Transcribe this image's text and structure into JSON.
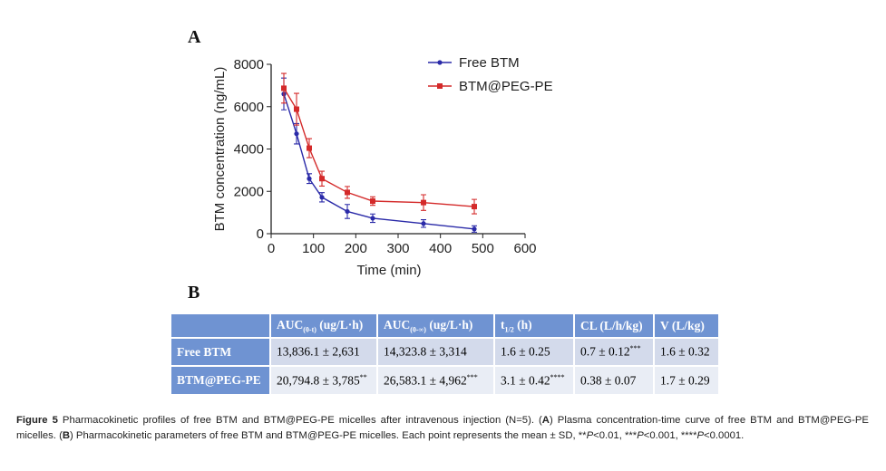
{
  "panel_a_label": "A",
  "panel_b_label": "B",
  "chart_data": {
    "type": "line",
    "xlabel": "Time (min)",
    "ylabel": "BTM concentration (ng/mL)",
    "xlim": [
      0,
      600
    ],
    "ylim": [
      0,
      8000
    ],
    "xticks": [
      0,
      100,
      200,
      300,
      400,
      500,
      600
    ],
    "yticks": [
      0,
      2000,
      4000,
      6000,
      8000
    ],
    "grid": false,
    "legend": "top-right",
    "x": [
      30,
      60,
      90,
      120,
      180,
      240,
      360,
      480
    ],
    "series": [
      {
        "name": "Free BTM",
        "color": "#2a2aa8",
        "marker": "circle",
        "values": [
          6600,
          4720,
          2600,
          1720,
          1050,
          730,
          480,
          220
        ],
        "errors": [
          750,
          480,
          230,
          220,
          330,
          200,
          180,
          150
        ]
      },
      {
        "name": "BTM@PEG-PE",
        "color": "#d42a2a",
        "marker": "square",
        "values": [
          6870,
          5880,
          4040,
          2600,
          1950,
          1540,
          1470,
          1280
        ],
        "errors": [
          700,
          750,
          450,
          350,
          280,
          200,
          370,
          340
        ]
      }
    ]
  },
  "table": {
    "headers": [
      {
        "main": "AUC",
        "sub": "(0-t)",
        "unit": " (ug/L·h)"
      },
      {
        "main": "AUC",
        "sub": "(0-∞)",
        "unit": " (ug/L·h)"
      },
      {
        "main": "t",
        "sub": "1/2",
        "unit": " (h)"
      },
      {
        "main": "CL (L/h/kg)",
        "sub": "",
        "unit": ""
      },
      {
        "main": "V (L/kg)",
        "sub": "",
        "unit": ""
      }
    ],
    "rows": [
      {
        "label": "Free BTM",
        "cells": [
          {
            "v": "13,836.1 ± 2,631",
            "s": ""
          },
          {
            "v": "14,323.8 ± 3,314",
            "s": ""
          },
          {
            "v": "1.6 ± 0.25",
            "s": ""
          },
          {
            "v": "0.7 ± 0.12",
            "s": "***"
          },
          {
            "v": "1.6 ± 0.32",
            "s": ""
          }
        ]
      },
      {
        "label": "BTM@PEG-PE",
        "cells": [
          {
            "v": "20,794.8 ± 3,785",
            "s": "**"
          },
          {
            "v": "26,583.1 ± 4,962",
            "s": "***"
          },
          {
            "v": "3.1 ± 0.42",
            "s": "****"
          },
          {
            "v": "0.38 ± 0.07",
            "s": ""
          },
          {
            "v": "1.7 ± 0.29",
            "s": ""
          }
        ]
      }
    ]
  },
  "caption": {
    "fig": "Figure 5",
    "t1": " Pharmacokinetic profiles of free BTM and BTM@PEG-PE micelles after intravenous injection (N=5). (",
    "a": "A",
    "t2": ") Plasma concentration-time curve of free BTM and BTM@PEG-PE micelles. (",
    "b": "B",
    "t3": ") Pharmacokinetic parameters of free BTM and BTM@PEG-PE micelles. Each point represents the mean ± SD, **",
    "p1": "P",
    "t4": "<0.01, ***",
    "p2": "P",
    "t5": "<0.001, ****",
    "p3": "P",
    "t6": "<0.0001."
  }
}
